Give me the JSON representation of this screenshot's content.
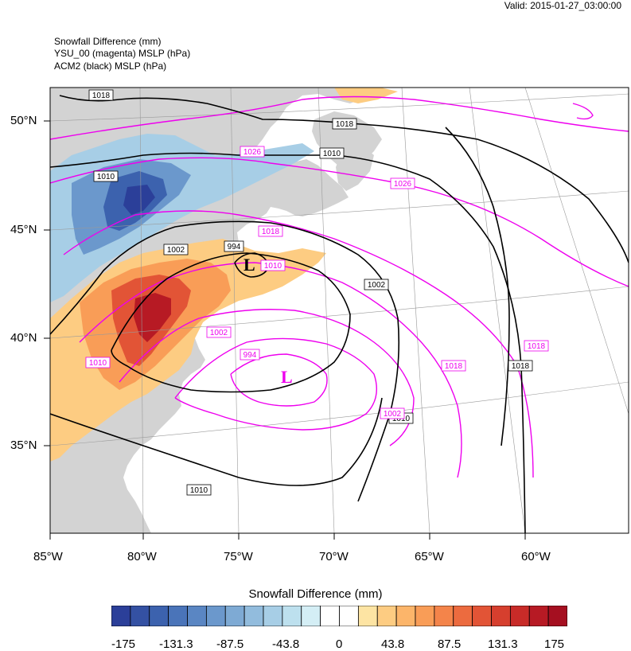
{
  "valid_label": "Valid: 2015-01-27_03:00:00",
  "titles": {
    "line1": "Snowfall Difference   (mm)",
    "line2": "YSU_00 (magenta) MSLP   (hPa)",
    "line3": "ACM2 (black) MSLP   (hPa)"
  },
  "lat_labels": [
    "50°N",
    "45°N",
    "40°N",
    "35°N"
  ],
  "lon_labels": [
    "85°W",
    "80°W",
    "75°W",
    "70°W",
    "65°W",
    "60°W"
  ],
  "contour_labels": {
    "black": [
      "1018",
      "1018",
      "1010",
      "1010",
      "1002",
      "994",
      "1002",
      "1018",
      "1010",
      "1010"
    ],
    "magenta": [
      "1026",
      "1026",
      "1018",
      "1010",
      "1002",
      "994",
      "1010",
      "1018",
      "1018",
      "1002",
      "1010"
    ]
  },
  "low_markers": {
    "black": "L",
    "magenta": "L"
  },
  "colorbar": {
    "title": "Snowfall Difference  (mm)",
    "labels": [
      "-175",
      "-131.3",
      "-87.5",
      "-43.8",
      "0",
      "43.8",
      "87.5",
      "131.3",
      "175"
    ],
    "colors": [
      "#2b3f99",
      "#3451a3",
      "#3c62ae",
      "#4a74b9",
      "#5a86c3",
      "#6b98cc",
      "#7eaad4",
      "#92bcdd",
      "#a7cee6",
      "#bde0ee",
      "#d4eef5",
      "#ffffff",
      "#ffffff",
      "#fde4a3",
      "#fdcc82",
      "#fcb56a",
      "#f99d57",
      "#f4844a",
      "#ec6b3f",
      "#e25436",
      "#d63f2e",
      "#c82b28",
      "#b71a24",
      "#a50f20"
    ]
  },
  "colors": {
    "land": "#d3d3d3",
    "ocean": "#ffffff",
    "ysu_mslp": "#ee00ee",
    "acm2_mslp": "#000000"
  }
}
